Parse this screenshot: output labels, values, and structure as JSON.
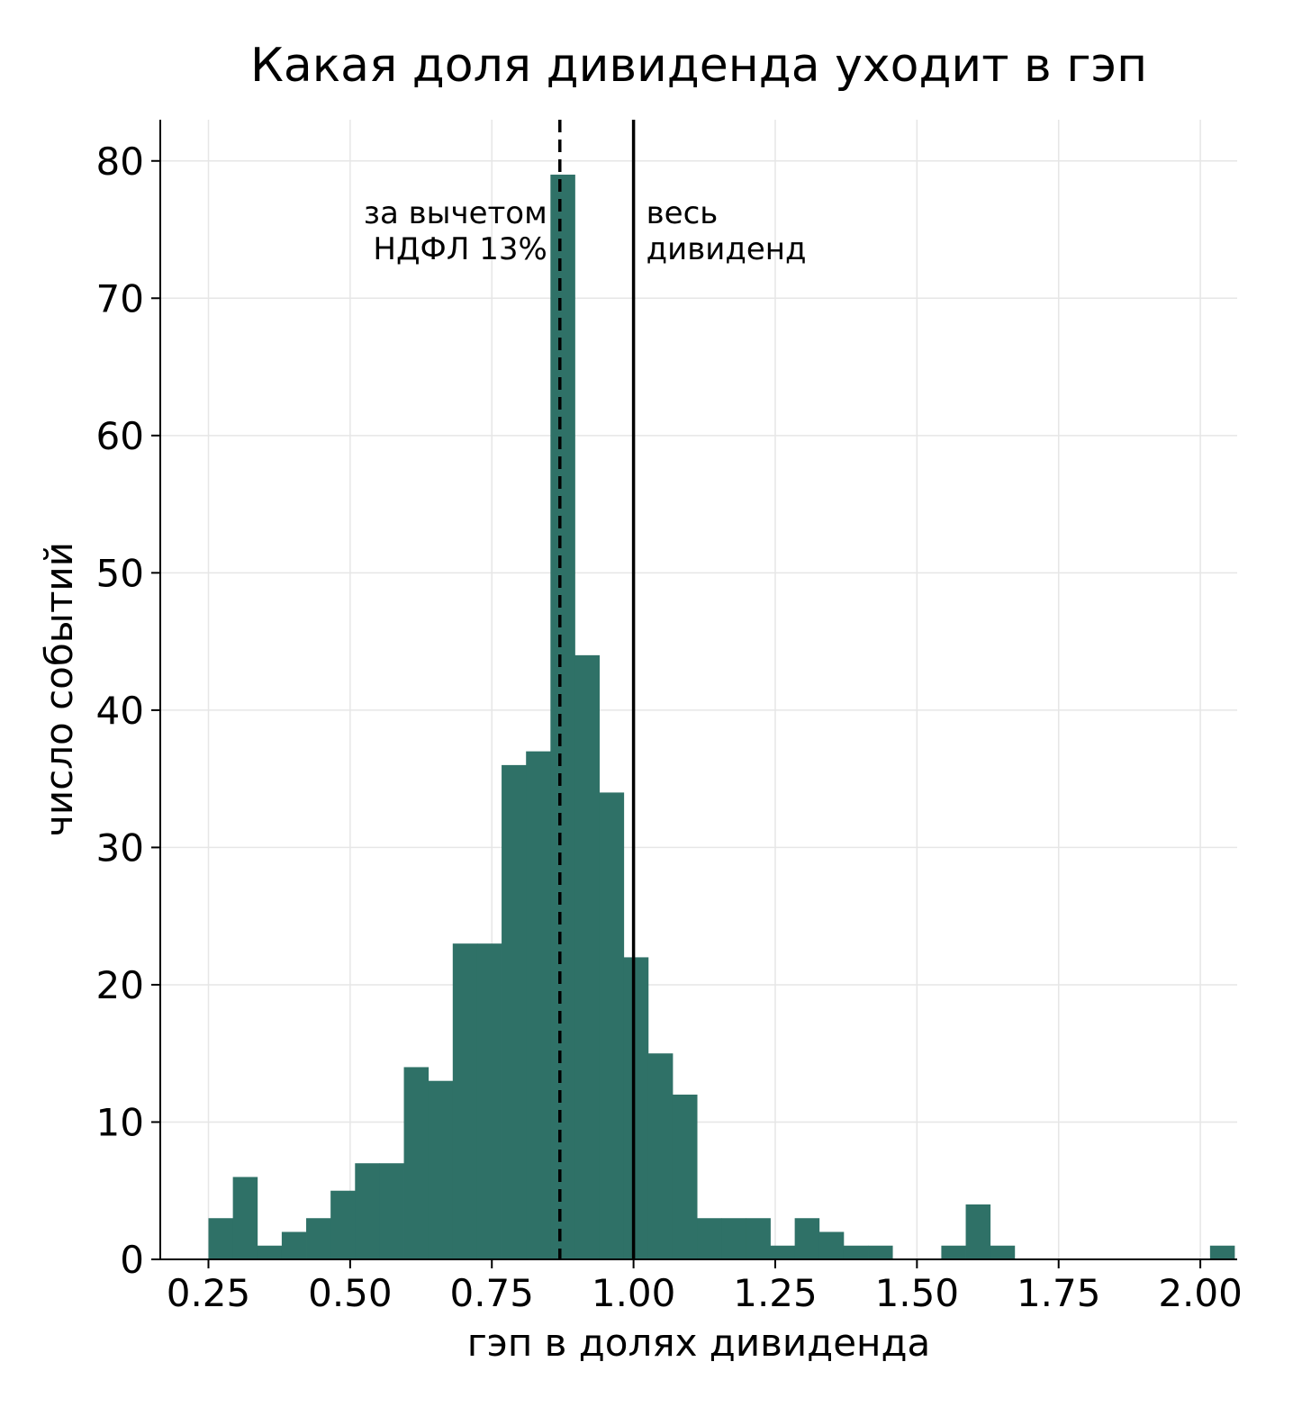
{
  "chart_data": {
    "type": "bar",
    "title": "Какая доля дивиденда уходит в гэп",
    "xlabel": "гэп в долях дивиденда",
    "ylabel": "число событий",
    "xlim": [
      0.165,
      2.065
    ],
    "ylim": [
      0,
      83
    ],
    "xticks": [
      "0.25",
      "0.50",
      "0.75",
      "1.00",
      "1.25",
      "1.50",
      "1.75",
      "2.00"
    ],
    "yticks": [
      "0",
      "10",
      "20",
      "30",
      "40",
      "50",
      "60",
      "70",
      "80"
    ],
    "grid": true,
    "bar_color": "#2f7167",
    "bin_start": 0.25,
    "bin_width": 0.0431,
    "values": [
      3,
      6,
      1,
      2,
      3,
      5,
      7,
      7,
      14,
      13,
      23,
      23,
      36,
      37,
      79,
      44,
      34,
      22,
      15,
      12,
      3,
      3,
      3,
      1,
      3,
      2,
      1,
      1,
      0,
      0,
      1,
      4,
      1,
      0,
      0,
      0,
      0,
      0,
      0,
      0,
      0,
      1
    ],
    "reference_lines": [
      {
        "x": 0.87,
        "style": "dashed",
        "label": "за вычетом\nНДФЛ 13%"
      },
      {
        "x": 1.0,
        "style": "solid",
        "label": "весь\nдивиденд"
      }
    ]
  }
}
